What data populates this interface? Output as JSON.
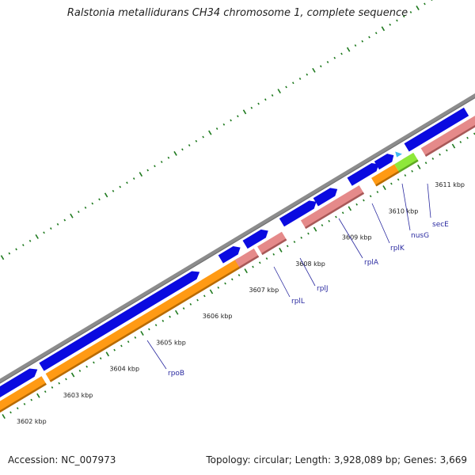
{
  "title": "Ralstonia metallidurans CH34 chromosome 1, complete sequence",
  "footer": {
    "accession": "Accession: NC_007973",
    "stats": "Topology: circular; Length: 3,928,089 bp; Genes: 3,669"
  },
  "scale": {
    "unit": "kbp",
    "ticks": [
      {
        "label": "3602 kbp"
      },
      {
        "label": "3603 kbp"
      },
      {
        "label": "3604 kbp"
      },
      {
        "label": "3605 kbp"
      },
      {
        "label": "3606 kbp"
      },
      {
        "label": "3607 kbp"
      },
      {
        "label": "3608 kbp"
      },
      {
        "label": "3609 kbp"
      },
      {
        "label": "3610 kbp"
      },
      {
        "label": "3611 kbp"
      }
    ]
  },
  "genes": [
    {
      "name": "rpoB"
    },
    {
      "name": "rplL"
    },
    {
      "name": "rplJ"
    },
    {
      "name": "rplA"
    },
    {
      "name": "rplK"
    },
    {
      "name": "nusG"
    },
    {
      "name": "secE"
    }
  ],
  "colors": {
    "backbone": "#8c8c8c",
    "cds": "#0a0ae0",
    "orf_orange": "#ff9a14",
    "orf_pink": "#e58a8a",
    "orf_green": "#8ee83a",
    "tick": "#1f7a1f",
    "trna": "#40b8f0"
  }
}
